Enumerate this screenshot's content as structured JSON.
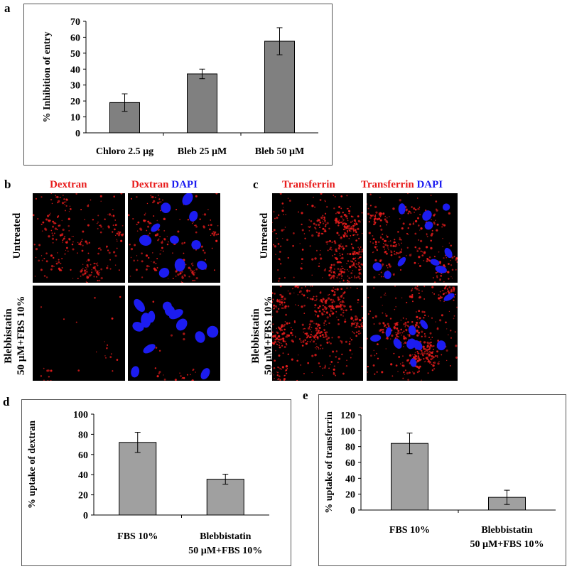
{
  "panels": {
    "a": "a",
    "b": "b",
    "c": "c",
    "d": "d",
    "e": "e"
  },
  "chart_data": [
    {
      "id": "a",
      "type": "bar",
      "title": "",
      "xlabel": "",
      "ylabel": "% Inhibition of entry",
      "categories": [
        "Chloro 2.5 µg",
        "Bleb 25 µM",
        "Bleb 50 µM"
      ],
      "values": [
        19,
        37,
        57.5
      ],
      "errors": [
        5.5,
        3,
        8.5
      ],
      "ylim": [
        0,
        70
      ],
      "yticks": [
        "0",
        "10",
        "20",
        "30",
        "40",
        "50",
        "60",
        "70"
      ],
      "bar_color": "#808080",
      "grid": false
    },
    {
      "id": "d",
      "type": "bar",
      "title": "",
      "xlabel": "",
      "ylabel": "% uptake of dextran",
      "categories": [
        [
          "FBS 10%"
        ],
        [
          "Blebbistatin",
          "50 µM+FBS 10%"
        ]
      ],
      "values": [
        72,
        35.5
      ],
      "errors": [
        10,
        5
      ],
      "ylim": [
        0,
        100
      ],
      "yticks": [
        "0",
        "20",
        "40",
        "60",
        "80",
        "100"
      ],
      "bar_color": "#a0a0a0",
      "grid": false
    },
    {
      "id": "e",
      "type": "bar",
      "title": "",
      "xlabel": "",
      "ylabel": "% uptake of transferrin",
      "categories": [
        [
          "FBS 10%"
        ],
        [
          "Blebbistatin",
          "50 µM+FBS 10%"
        ]
      ],
      "values": [
        84,
        16
      ],
      "errors": [
        13,
        9
      ],
      "ylim": [
        0,
        120
      ],
      "yticks": [
        "0",
        "20",
        "40",
        "60",
        "80",
        "100",
        "120"
      ],
      "bar_color": "#a0a0a0",
      "grid": false
    }
  ],
  "micrographs": {
    "b": {
      "col1": "Dextran",
      "col2_red": "Dextran",
      "col2_blue": "DAPI",
      "row1": "Untreated",
      "row2_line1": "Blebbistatin",
      "row2_line2": "50 µM+FBS 10%"
    },
    "c": {
      "col1": "Transferrin",
      "col2_red": "Transferrin",
      "col2_blue": "DAPI",
      "row1": "Untreated",
      "row2_line1": "Blebbistatin",
      "row2_line2": "50 µM+FBS 10%"
    },
    "colors": {
      "red": "#e81c1c",
      "blue": "#1c1cf0",
      "background": "#000000"
    }
  }
}
